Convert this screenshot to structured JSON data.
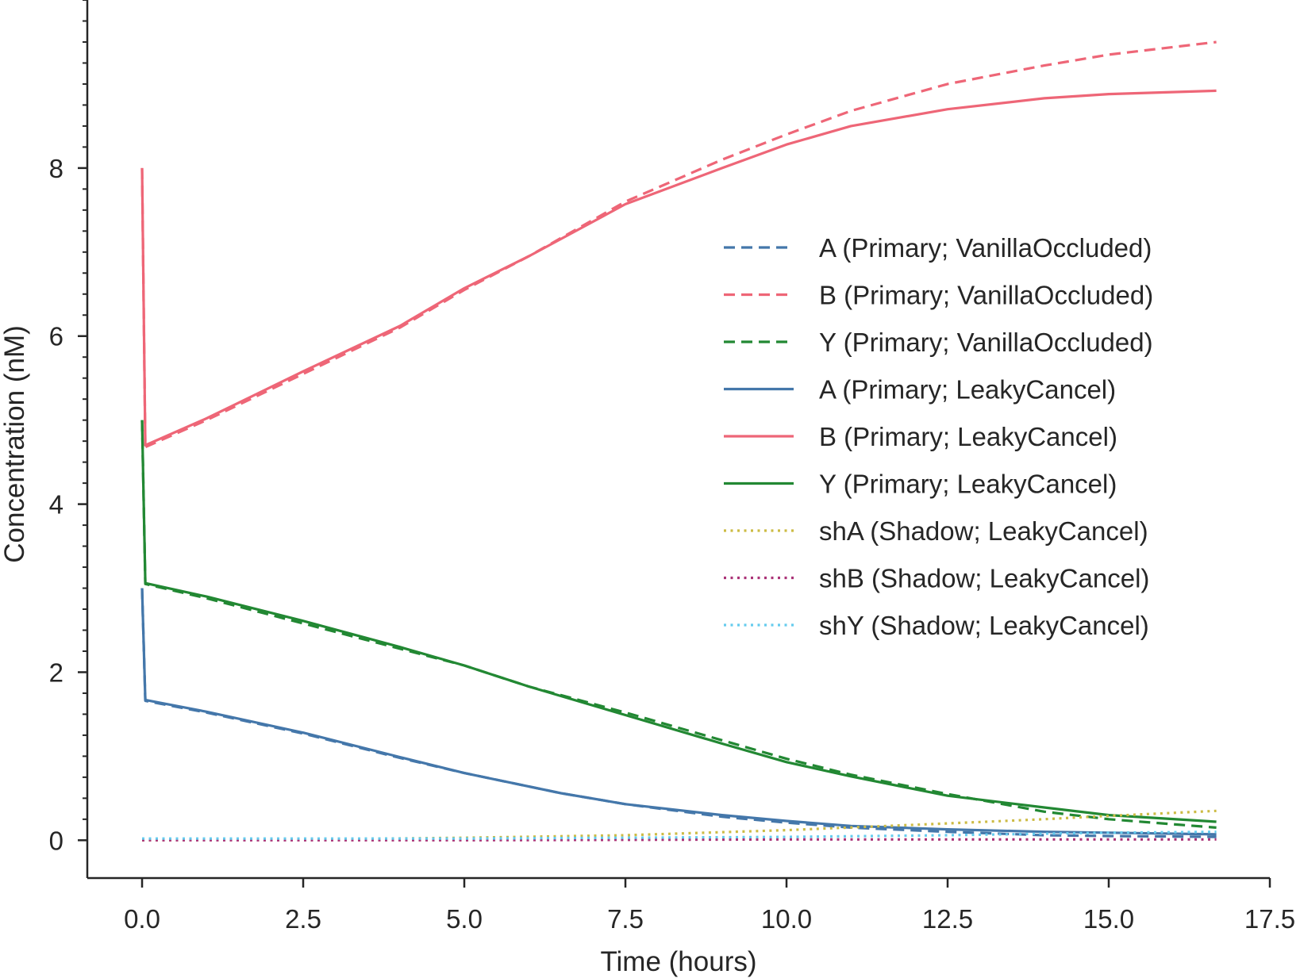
{
  "chart_data": {
    "type": "line",
    "title": "",
    "xlabel": "Time (hours)",
    "ylabel": "Concentration (nM)",
    "xlim": [
      -0.85,
      17.5
    ],
    "ylim": [
      -0.45,
      10.0
    ],
    "xticks": [
      0.0,
      2.5,
      5.0,
      7.5,
      10.0,
      12.5,
      15.0,
      17.5
    ],
    "xtick_labels": [
      "0.0",
      "2.5",
      "5.0",
      "7.5",
      "10.0",
      "12.5",
      "15.0",
      "17.5"
    ],
    "yticks": [
      0,
      2,
      4,
      6,
      8
    ],
    "ytick_labels": [
      "0",
      "2",
      "4",
      "6",
      "8"
    ],
    "yminor_step": 0.25,
    "grid": false,
    "legend_position": "center-right",
    "series": [
      {
        "name": "A (Primary; VanillaOccluded)",
        "color": "#4477aa",
        "dash": "dashed",
        "points": [
          [
            0,
            3.0
          ],
          [
            0.05,
            1.66
          ],
          [
            1,
            1.52
          ],
          [
            2.5,
            1.27
          ],
          [
            4,
            0.98
          ],
          [
            5,
            0.8
          ],
          [
            6.5,
            0.56
          ],
          [
            7.5,
            0.43
          ],
          [
            9,
            0.28
          ],
          [
            10,
            0.21
          ],
          [
            11,
            0.15
          ],
          [
            12.5,
            0.1
          ],
          [
            14,
            0.06
          ],
          [
            15,
            0.05
          ],
          [
            16.67,
            0.04
          ]
        ]
      },
      {
        "name": "B (Primary; VanillaOccluded)",
        "color": "#ee6677",
        "dash": "dashed",
        "points": [
          [
            0,
            8.0
          ],
          [
            0.05,
            4.68
          ],
          [
            1,
            5.0
          ],
          [
            2.5,
            5.55
          ],
          [
            4,
            6.1
          ],
          [
            5,
            6.55
          ],
          [
            6,
            6.95
          ],
          [
            7.5,
            7.6
          ],
          [
            9,
            8.1
          ],
          [
            10,
            8.4
          ],
          [
            11,
            8.68
          ],
          [
            12.5,
            9.0
          ],
          [
            14,
            9.22
          ],
          [
            15,
            9.35
          ],
          [
            16.67,
            9.5
          ]
        ]
      },
      {
        "name": "Y (Primary; VanillaOccluded)",
        "color": "#228833",
        "dash": "dashed",
        "points": [
          [
            0,
            5.0
          ],
          [
            0.05,
            3.05
          ],
          [
            1,
            2.88
          ],
          [
            2.5,
            2.58
          ],
          [
            4,
            2.28
          ],
          [
            5,
            2.08
          ],
          [
            6,
            1.83
          ],
          [
            7.5,
            1.52
          ],
          [
            9,
            1.19
          ],
          [
            10,
            0.97
          ],
          [
            11,
            0.78
          ],
          [
            12.5,
            0.55
          ],
          [
            14,
            0.34
          ],
          [
            15,
            0.25
          ],
          [
            16.67,
            0.15
          ]
        ]
      },
      {
        "name": "A (Primary; LeakyCancel)",
        "color": "#4477aa",
        "dash": "solid",
        "points": [
          [
            0,
            3.0
          ],
          [
            0.05,
            1.67
          ],
          [
            1,
            1.53
          ],
          [
            2.5,
            1.28
          ],
          [
            4,
            0.99
          ],
          [
            5,
            0.8
          ],
          [
            6.5,
            0.56
          ],
          [
            7.5,
            0.43
          ],
          [
            9,
            0.3
          ],
          [
            10,
            0.23
          ],
          [
            11,
            0.17
          ],
          [
            12.5,
            0.13
          ],
          [
            14,
            0.1
          ],
          [
            15,
            0.09
          ],
          [
            16.67,
            0.07
          ]
        ]
      },
      {
        "name": "B (Primary; LeakyCancel)",
        "color": "#ee6677",
        "dash": "solid",
        "points": [
          [
            0,
            8.0
          ],
          [
            0.05,
            4.7
          ],
          [
            1,
            5.02
          ],
          [
            2.5,
            5.58
          ],
          [
            4,
            6.12
          ],
          [
            5,
            6.57
          ],
          [
            6,
            6.95
          ],
          [
            7.5,
            7.57
          ],
          [
            9,
            8.0
          ],
          [
            10,
            8.28
          ],
          [
            11,
            8.5
          ],
          [
            12.5,
            8.7
          ],
          [
            14,
            8.83
          ],
          [
            15,
            8.88
          ],
          [
            16.67,
            8.92
          ]
        ]
      },
      {
        "name": "Y (Primary; LeakyCancel)",
        "color": "#228833",
        "dash": "solid",
        "points": [
          [
            0,
            5.0
          ],
          [
            0.05,
            3.06
          ],
          [
            1,
            2.9
          ],
          [
            2.5,
            2.61
          ],
          [
            4,
            2.3
          ],
          [
            5,
            2.08
          ],
          [
            6,
            1.83
          ],
          [
            7.5,
            1.49
          ],
          [
            9,
            1.15
          ],
          [
            10,
            0.93
          ],
          [
            11,
            0.76
          ],
          [
            12.5,
            0.53
          ],
          [
            14,
            0.39
          ],
          [
            15,
            0.3
          ],
          [
            16.67,
            0.22
          ]
        ]
      },
      {
        "name": "shA (Shadow; LeakyCancel)",
        "color": "#ccbb44",
        "dash": "dotted",
        "points": [
          [
            0,
            0.0
          ],
          [
            2.5,
            0.01
          ],
          [
            5,
            0.03
          ],
          [
            7.5,
            0.06
          ],
          [
            10,
            0.12
          ],
          [
            12.5,
            0.2
          ],
          [
            14,
            0.25
          ],
          [
            15,
            0.29
          ],
          [
            16.67,
            0.35
          ]
        ]
      },
      {
        "name": "shB (Shadow; LeakyCancel)",
        "color": "#aa3377",
        "dash": "dotted",
        "points": [
          [
            0,
            0.0
          ],
          [
            5,
            0.0
          ],
          [
            10,
            0.01
          ],
          [
            16.67,
            0.01
          ]
        ]
      },
      {
        "name": "shY (Shadow; LeakyCancel)",
        "color": "#66ccee",
        "dash": "dotted",
        "points": [
          [
            0,
            0.02
          ],
          [
            5,
            0.02
          ],
          [
            10,
            0.04
          ],
          [
            12.5,
            0.06
          ],
          [
            15,
            0.09
          ],
          [
            16.67,
            0.1
          ]
        ]
      }
    ]
  }
}
